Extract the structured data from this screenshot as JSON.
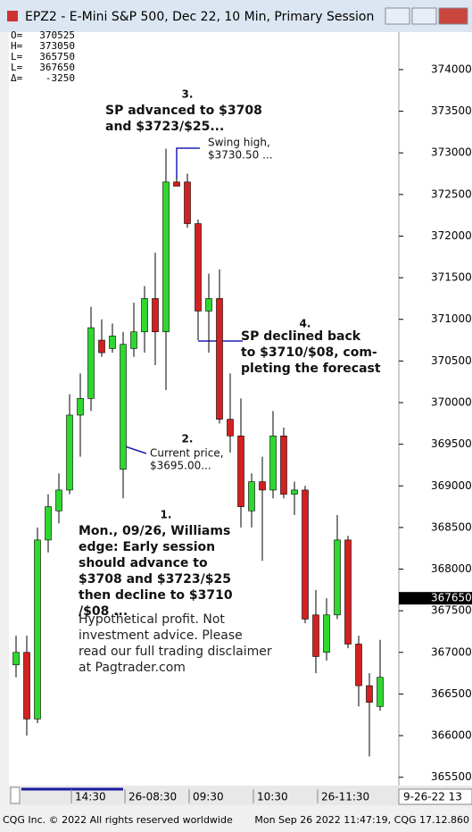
{
  "window": {
    "title": "EPZ2 - E-Mini S&P 500, Dec 22, 10 Min, Primary Session"
  },
  "chart_data": {
    "type": "candlestick",
    "categories": [
      null,
      null,
      null,
      null,
      null,
      "14:30",
      null,
      null,
      null,
      null,
      "26-08:30",
      null,
      null,
      null,
      null,
      null,
      "09:30",
      null,
      null,
      null,
      null,
      null,
      "10:30",
      null,
      null,
      null,
      null,
      null,
      "26-11:30",
      null,
      null,
      null,
      null,
      null,
      null
    ],
    "open": [
      366850,
      367000,
      366200,
      368350,
      368700,
      368950,
      369850,
      370050,
      370750,
      370650,
      369200,
      370650,
      370850,
      371250,
      370850,
      372650,
      372650,
      372150,
      371100,
      371250,
      369800,
      369600,
      368700,
      369050,
      368950,
      369600,
      368900,
      368950,
      367450,
      367000,
      367450,
      368350,
      367100,
      366600,
      366350
    ],
    "high": [
      367200,
      367200,
      368500,
      368900,
      369150,
      370100,
      370350,
      371150,
      371000,
      370950,
      370850,
      371200,
      371400,
      371800,
      373050,
      372700,
      372750,
      372200,
      371550,
      371600,
      370350,
      370050,
      369150,
      369350,
      369900,
      369700,
      369050,
      369000,
      367750,
      367650,
      368650,
      368400,
      367200,
      366750,
      367150
    ],
    "low": [
      366700,
      366000,
      366150,
      368200,
      368550,
      368900,
      369350,
      369900,
      370550,
      370600,
      368850,
      370550,
      370600,
      370450,
      370150,
      372600,
      372100,
      370750,
      370600,
      369750,
      369400,
      368500,
      368500,
      368100,
      368850,
      368850,
      368650,
      367350,
      366750,
      366900,
      367400,
      367050,
      366350,
      365750,
      366300
    ],
    "close": [
      367000,
      366200,
      368350,
      368750,
      368950,
      369850,
      370050,
      370900,
      370600,
      370800,
      370700,
      370850,
      371250,
      370850,
      372650,
      372600,
      372150,
      371100,
      371250,
      369800,
      369600,
      368750,
      369050,
      368950,
      369600,
      368900,
      368950,
      367400,
      366950,
      367450,
      368350,
      367100,
      366600,
      366400,
      366700
    ],
    "up_color": "#2fd82f",
    "down_color": "#d42020",
    "ylim": [
      365400,
      374450
    ],
    "yticks": [
      365500,
      366000,
      366500,
      367000,
      367500,
      368000,
      368500,
      369000,
      369500,
      370000,
      370500,
      371000,
      371500,
      372000,
      372500,
      373000,
      373500,
      374000
    ],
    "last_price": 367650,
    "date_label": "9-26-22 13",
    "info": [
      {
        "label": "O=",
        "value": 370525
      },
      {
        "label": "H=",
        "value": 373050
      },
      {
        "label": "L=",
        "value": 365750
      },
      {
        "label": "L=",
        "value": 367650
      },
      {
        "label": "Δ=",
        "value": -3250
      }
    ],
    "annotations": [
      {
        "number": "3.",
        "lines": [
          "SP advanced to $3708",
          "and $3723/$25..."
        ]
      },
      {
        "number": "",
        "lines": [
          "Swing high,",
          "$3730.50 ..."
        ]
      },
      {
        "number": "4.",
        "lines": [
          "SP declined back",
          "to $3710/$08, com-",
          "pleting the forecast"
        ]
      },
      {
        "number": "2.",
        "lines": [
          "Current price,",
          "$3695.00..."
        ]
      },
      {
        "number": "1.",
        "lines": [
          "Mon., 09/26, Williams",
          "edge: Early session",
          "should advance to",
          "$3708 and $3723/$25",
          "then decline to $3710",
          "/$08 ..."
        ]
      },
      {
        "number": "",
        "lines": [
          "Hypothetical profit. Not",
          "investment advice. Please",
          "read our full trading disclaimer",
          "at Pagtrader.com"
        ]
      }
    ]
  },
  "footer": {
    "left": "CQG Inc. © 2022 All rights reserved worldwide",
    "right": "Mon Sep 26 2022 11:47:19, CQG 17.12.860"
  }
}
